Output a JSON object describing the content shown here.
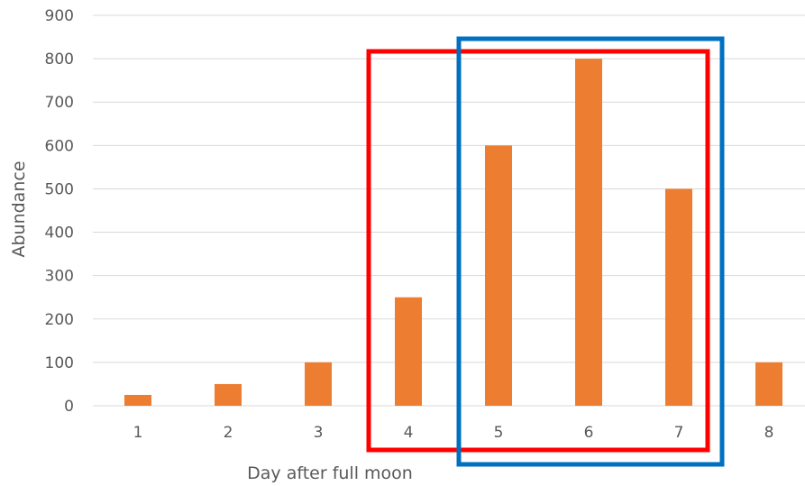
{
  "chart_data": {
    "type": "bar",
    "title": "",
    "xlabel": "Day after full moon",
    "ylabel": "Abundance",
    "categories": [
      "1",
      "2",
      "3",
      "4",
      "5",
      "6",
      "7",
      "8"
    ],
    "values": [
      25,
      50,
      100,
      250,
      600,
      800,
      500,
      100
    ],
    "ylim": [
      0,
      900
    ],
    "yticks": [
      "0",
      "100",
      "200",
      "300",
      "400",
      "500",
      "600",
      "700",
      "800",
      "900"
    ],
    "grid": true,
    "bar_color": "#ed7d31",
    "highlight_boxes": [
      {
        "categories_from": "4",
        "categories_to": "7",
        "color": "#ff0000"
      },
      {
        "categories_from": "5",
        "categories_to": "7",
        "color": "#0070c0"
      }
    ]
  }
}
